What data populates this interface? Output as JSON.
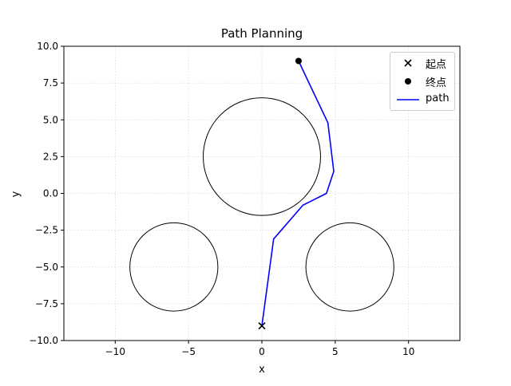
{
  "chart_data": {
    "type": "scatter",
    "title": "Path Planning",
    "xlabel": "x",
    "ylabel": "y",
    "xlim": [
      -13.5,
      13.5
    ],
    "ylim": [
      -10,
      10
    ],
    "xticks": [
      -10,
      -5,
      0,
      5,
      10
    ],
    "xtick_labels": [
      "−10",
      "−5",
      "0",
      "5",
      "10"
    ],
    "yticks": [
      -10,
      -7.5,
      -5,
      -2.5,
      0,
      2.5,
      5,
      7.5,
      10
    ],
    "ytick_labels": [
      "−10.0",
      "−7.5",
      "−5.0",
      "−2.5",
      "0.0",
      "2.5",
      "5.0",
      "7.5",
      "10.0"
    ],
    "grid": true,
    "legend_position": "top-right",
    "start": {
      "x": 0,
      "y": -9,
      "marker": "x",
      "label": "起点"
    },
    "goal": {
      "x": 2.5,
      "y": 9,
      "marker": "o",
      "label": "终点"
    },
    "path": {
      "name": "path",
      "color": "#0000ff",
      "x": [
        0,
        0.8,
        2.8,
        4.4,
        4.9,
        4.5,
        2.5
      ],
      "y": [
        -9,
        -3.1,
        -0.8,
        0,
        1.5,
        4.8,
        9
      ]
    },
    "obstacles": [
      {
        "cx": 0,
        "cy": 2.5,
        "r": 4
      },
      {
        "cx": -6,
        "cy": -5,
        "r": 3
      },
      {
        "cx": 6,
        "cy": -5,
        "r": 3
      }
    ]
  }
}
